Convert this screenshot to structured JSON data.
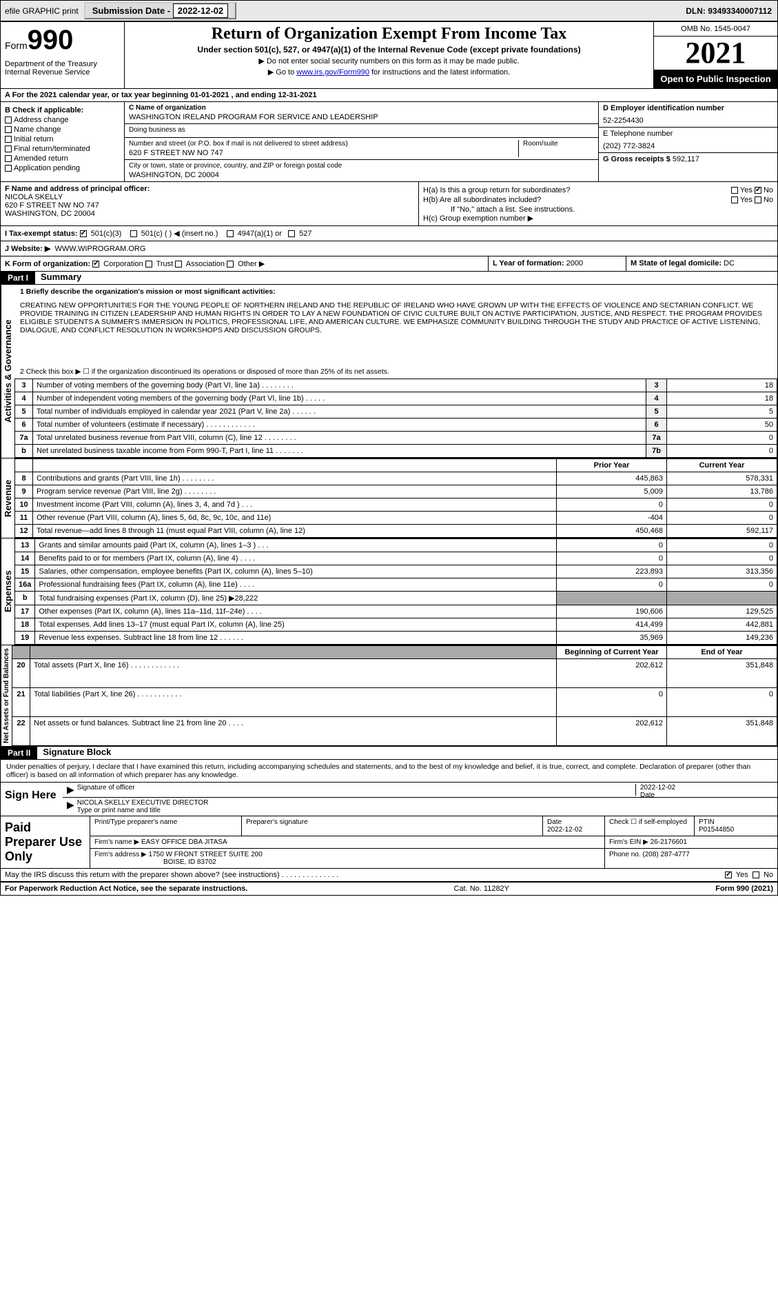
{
  "topbar": {
    "efile": "efile GRAPHIC print",
    "subdate_label": "Submission Date - ",
    "subdate": "2022-12-02",
    "dln_label": "DLN: ",
    "dln": "93493340007112"
  },
  "header": {
    "form_prefix": "Form",
    "form_num": "990",
    "dept": "Department of the Treasury",
    "irs": "Internal Revenue Service",
    "title": "Return of Organization Exempt From Income Tax",
    "subtitle": "Under section 501(c), 527, or 4947(a)(1) of the Internal Revenue Code (except private foundations)",
    "instr1": "▶ Do not enter social security numbers on this form as it may be made public.",
    "instr2_pre": "▶ Go to ",
    "instr2_link": "www.irs.gov/Form990",
    "instr2_post": " for instructions and the latest information.",
    "omb": "OMB No. 1545-0047",
    "year": "2021",
    "open": "Open to Public Inspection"
  },
  "rowA": "A For the 2021 calendar year, or tax year beginning 01-01-2021   , and ending 12-31-2021",
  "B": {
    "label": "B Check if applicable:",
    "items": [
      "Address change",
      "Name change",
      "Initial return",
      "Final return/terminated",
      "Amended return",
      "Application pending"
    ]
  },
  "C": {
    "name_label": "C Name of organization",
    "name": "WASHINGTON IRELAND PROGRAM FOR SERVICE AND LEADERSHIP",
    "dba_label": "Doing business as",
    "dba": "",
    "addr_label": "Number and street (or P.O. box if mail is not delivered to street address)",
    "room_label": "Room/suite",
    "addr": "620 F STREET NW NO 747",
    "city_label": "City or town, state or province, country, and ZIP or foreign postal code",
    "city": "WASHINGTON, DC  20004"
  },
  "D": {
    "label": "D Employer identification number",
    "val": "52-2254430"
  },
  "E": {
    "label": "E Telephone number",
    "val": "(202) 772-3824"
  },
  "G": {
    "label": "G Gross receipts $",
    "val": "592,117"
  },
  "F": {
    "label": "F  Name and address of principal officer:",
    "name": "NICOLA SKELLY",
    "addr1": "620 F STREET NW NO 747",
    "addr2": "WASHINGTON, DC  20004"
  },
  "H": {
    "a_label": "H(a)  Is this a group return for subordinates?",
    "a_yes": "Yes",
    "a_no": "No",
    "b_label": "H(b)  Are all subordinates included?",
    "b_note": "If \"No,\" attach a list. See instructions.",
    "c_label": "H(c)  Group exemption number ▶"
  },
  "I": {
    "label": "I    Tax-exempt status:",
    "opts": [
      "501(c)(3)",
      "501(c) (  ) ◀ (insert no.)",
      "4947(a)(1) or",
      "527"
    ]
  },
  "J": {
    "label": "J   Website: ▶",
    "val": "WWW.WIPROGRAM.ORG"
  },
  "K": {
    "label": "K Form of organization:",
    "opts": [
      "Corporation",
      "Trust",
      "Association",
      "Other ▶"
    ]
  },
  "L": {
    "label": "L Year of formation:",
    "val": "2000"
  },
  "M": {
    "label": "M State of legal domicile:",
    "val": "DC"
  },
  "part1": {
    "hdr": "Part I",
    "title": "Summary",
    "line1_label": "1   Briefly describe the organization's mission or most significant activities:",
    "mission": "CREATING NEW OPPORTUNITIES FOR THE YOUNG PEOPLE OF NORTHERN IRELAND AND THE REPUBLIC OF IRELAND WHO HAVE GROWN UP WITH THE EFFECTS OF VIOLENCE AND SECTARIAN CONFLICT. WE PROVIDE TRAINING IN CITIZEN LEADERSHIP AND HUMAN RIGHTS IN ORDER TO LAY A NEW FOUNDATION OF CIVIC CULTURE BUILT ON ACTIVE PARTICIPATION, JUSTICE, AND RESPECT. THE PROGRAM PROVIDES ELIGIBLE STUDENTS A SUMMER'S IMMERSION IN POLITICS, PROFESSIONAL LIFE, AND AMERICAN CULTURE. WE EMPHASIZE COMMUNITY BUILDING THROUGH THE STUDY AND PRACTICE OF ACTIVE LISTENING, DIALOGUE, AND CONFLICT RESOLUTION IN WORKSHOPS AND DISCUSSION GROUPS.",
    "line2": "2   Check this box ▶ ☐  if the organization discontinued its operations or disposed of more than 25% of its net assets.",
    "sideA": "Activities & Governance",
    "sideB": "Revenue",
    "sideC": "Expenses",
    "sideD": "Net Assets or Fund Balances",
    "colPrior": "Prior Year",
    "colCurrent": "Current Year",
    "colBeg": "Beginning of Current Year",
    "colEnd": "End of Year",
    "lines_gov": [
      {
        "n": "3",
        "d": "Number of voting members of the governing body (Part VI, line 1a)   .    .    .    .    .    .    .    .",
        "box": "3",
        "v": "18"
      },
      {
        "n": "4",
        "d": "Number of independent voting members of the governing body (Part VI, line 1b)  .    .    .    .    .",
        "box": "4",
        "v": "18"
      },
      {
        "n": "5",
        "d": "Total number of individuals employed in calendar year 2021 (Part V, line 2a)   .    .    .    .    .    .",
        "box": "5",
        "v": "5"
      },
      {
        "n": "6",
        "d": "Total number of volunteers (estimate if necessary)    .    .    .    .    .    .    .    .    .    .    .    .",
        "box": "6",
        "v": "50"
      },
      {
        "n": "7a",
        "d": "Total unrelated business revenue from Part VIII, column (C), line 12   .    .    .    .    .    .    .    .",
        "box": "7a",
        "v": "0"
      },
      {
        "n": "b",
        "d": "Net unrelated business taxable income from Form 990-T, Part I, line 11    .    .    .    .    .    .    .",
        "box": "7b",
        "v": "0"
      }
    ],
    "lines_rev": [
      {
        "n": "8",
        "d": "Contributions and grants (Part VIII, line 1h)    .    .    .    .    .    .    .    .",
        "p": "445,863",
        "c": "578,331"
      },
      {
        "n": "9",
        "d": "Program service revenue (Part VIII, line 2g)    .    .    .    .    .    .    .    .",
        "p": "5,009",
        "c": "13,786"
      },
      {
        "n": "10",
        "d": "Investment income (Part VIII, column (A), lines 3, 4, and 7d )    .    .    .",
        "p": "0",
        "c": "0"
      },
      {
        "n": "11",
        "d": "Other revenue (Part VIII, column (A), lines 5, 6d, 8c, 9c, 10c, and 11e)",
        "p": "-404",
        "c": "0"
      },
      {
        "n": "12",
        "d": "Total revenue—add lines 8 through 11 (must equal Part VIII, column (A), line 12)",
        "p": "450,468",
        "c": "592,117"
      }
    ],
    "lines_exp": [
      {
        "n": "13",
        "d": "Grants and similar amounts paid (Part IX, column (A), lines 1–3 )    .    .    .",
        "p": "0",
        "c": "0"
      },
      {
        "n": "14",
        "d": "Benefits paid to or for members (Part IX, column (A), line 4)    .    .    .    .",
        "p": "0",
        "c": "0"
      },
      {
        "n": "15",
        "d": "Salaries, other compensation, employee benefits (Part IX, column (A), lines 5–10)",
        "p": "223,893",
        "c": "313,356"
      },
      {
        "n": "16a",
        "d": "Professional fundraising fees (Part IX, column (A), line 11e)    .    .    .    .",
        "p": "0",
        "c": "0"
      },
      {
        "n": "b",
        "d": "Total fundraising expenses (Part IX, column (D), line 25) ▶28,222",
        "p": "",
        "c": ""
      },
      {
        "n": "17",
        "d": "Other expenses (Part IX, column (A), lines 11a–11d, 11f–24e)    .    .    .    .",
        "p": "190,606",
        "c": "129,525"
      },
      {
        "n": "18",
        "d": "Total expenses. Add lines 13–17 (must equal Part IX, column (A), line 25)",
        "p": "414,499",
        "c": "442,881"
      },
      {
        "n": "19",
        "d": "Revenue less expenses. Subtract line 18 from line 12   .    .    .    .    .    .",
        "p": "35,969",
        "c": "149,236"
      }
    ],
    "lines_net": [
      {
        "n": "20",
        "d": "Total assets (Part X, line 16)    .    .    .    .    .    .    .    .    .    .    .    .",
        "p": "202,612",
        "c": "351,848"
      },
      {
        "n": "21",
        "d": "Total liabilities (Part X, line 26)   .    .    .    .    .    .    .    .    .    .    .",
        "p": "0",
        "c": "0"
      },
      {
        "n": "22",
        "d": "Net assets or fund balances. Subtract line 21 from line 20   .    .    .    .",
        "p": "202,612",
        "c": "351,848"
      }
    ]
  },
  "part2": {
    "hdr": "Part II",
    "title": "Signature Block",
    "decl": "Under penalties of perjury, I declare that I have examined this return, including accompanying schedules and statements, and to the best of my knowledge and belief, it is true, correct, and complete. Declaration of preparer (other than officer) is based on all information of which preparer has any knowledge.",
    "sign": "Sign Here",
    "sig_officer": "Signature of officer",
    "sig_date": "Date",
    "sig_date_val": "2022-12-02",
    "officer_name": "NICOLA SKELLY  EXECUTIVE DIRECTOR",
    "type_name": "Type or print name and title",
    "paid": "Paid Preparer Use Only",
    "prep_name_label": "Print/Type preparer's name",
    "prep_sig_label": "Preparer's signature",
    "prep_date_label": "Date",
    "prep_date": "2022-12-02",
    "self_emp": "Check ☐ if self-employed",
    "ptin_label": "PTIN",
    "ptin": "P01544850",
    "firm_name_label": "Firm's name    ▶",
    "firm_name": "EASY OFFICE DBA JITASA",
    "firm_ein_label": "Firm's EIN ▶",
    "firm_ein": "26-2176601",
    "firm_addr_label": "Firm's address ▶",
    "firm_addr": "1750 W FRONT STREET SUITE 200",
    "firm_city": "BOISE, ID  83702",
    "phone_label": "Phone no.",
    "phone": "(208) 287-4777",
    "discuss": "May the IRS discuss this return with the preparer shown above? (see instructions)    .    .    .    .    .    .    .    .    .    .    .    .    .    .",
    "discuss_yes": "Yes",
    "discuss_no": "No"
  },
  "footer": {
    "left": "For Paperwork Reduction Act Notice, see the separate instructions.",
    "mid": "Cat. No. 11282Y",
    "right": "Form 990 (2021)"
  }
}
